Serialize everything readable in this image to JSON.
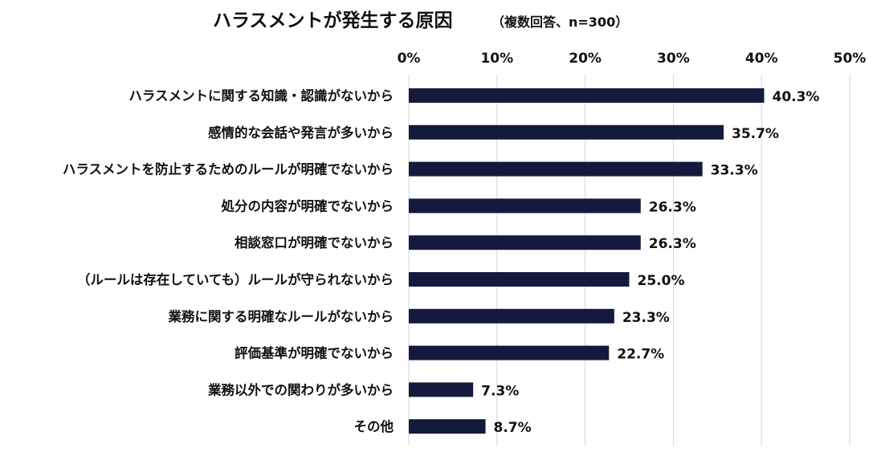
{
  "chart_data": {
    "type": "bar",
    "orientation": "horizontal",
    "title": "ハラスメントが発生する原因",
    "subtitle": "（複数回答、n=300）",
    "categories": [
      "ハラスメントに関する知識・認識がないから",
      "感情的な会話や発言が多いから",
      "ハラスメントを防止するためのルールが明確でないから",
      "処分の内容が明確でないから",
      "相談窓口が明確でないから",
      "（ルールは存在していても）ルールが守られないから",
      "業務に関する明確なルールがないから",
      "評価基準が明確でないから",
      "業務以外での関わりが多いから",
      "その他"
    ],
    "values": [
      40.3,
      35.7,
      33.3,
      26.3,
      26.3,
      25.0,
      23.3,
      22.7,
      7.3,
      8.7
    ],
    "value_labels": [
      "40.3%",
      "35.7%",
      "33.3%",
      "26.3%",
      "26.3%",
      "25.0%",
      "23.3%",
      "22.7%",
      "7.3%",
      "8.7%"
    ],
    "xlim": [
      0,
      50
    ],
    "xticks": [
      0,
      10,
      20,
      30,
      40,
      50
    ],
    "xtick_labels": [
      "0%",
      "10%",
      "20%",
      "30%",
      "40%",
      "50%"
    ],
    "xaxis_position": "top",
    "grid": "vertical",
    "bar_color": "#141a3d",
    "gridline_color": "#d4d4d4",
    "text_color": "#111111",
    "xlabel": "",
    "ylabel": ""
  }
}
